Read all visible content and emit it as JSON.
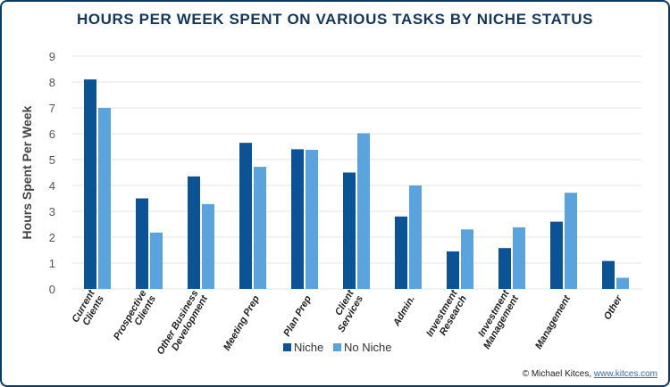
{
  "chart_data": {
    "type": "bar",
    "title": "HOURS PER WEEK SPENT ON VARIOUS TASKS BY NICHE STATUS",
    "xlabel": "",
    "ylabel": "Hours Spent Per Week",
    "ylim": [
      0,
      9
    ],
    "yticks": [
      "0",
      "1",
      "2",
      "3",
      "4",
      "5",
      "6",
      "7",
      "8",
      "9"
    ],
    "grid": true,
    "legend_position": "bottom",
    "categories": [
      [
        "Current",
        "Clients"
      ],
      [
        "Prospective",
        "Clients"
      ],
      [
        "Other Business",
        "Development"
      ],
      [
        "Meeting Prep"
      ],
      [
        "Plan Prep"
      ],
      [
        "Client",
        "Services"
      ],
      [
        "Admin."
      ],
      [
        "Investment",
        "Research"
      ],
      [
        "Investment",
        "Management"
      ],
      [
        "Management"
      ],
      [
        "Other"
      ]
    ],
    "series": [
      {
        "name": "Niche",
        "color": "#0b5394",
        "values": [
          8.1,
          3.5,
          4.35,
          5.65,
          5.4,
          4.5,
          2.8,
          1.45,
          1.58,
          2.6,
          1.08
        ]
      },
      {
        "name": "No Niche",
        "color": "#5ba3dc",
        "values": [
          7.0,
          2.18,
          3.28,
          4.72,
          5.38,
          6.02,
          4.0,
          2.3,
          2.38,
          3.72,
          0.43
        ]
      }
    ]
  },
  "credit": {
    "prefix": "© Michael Kitces, ",
    "link": "www.kitces.com"
  }
}
